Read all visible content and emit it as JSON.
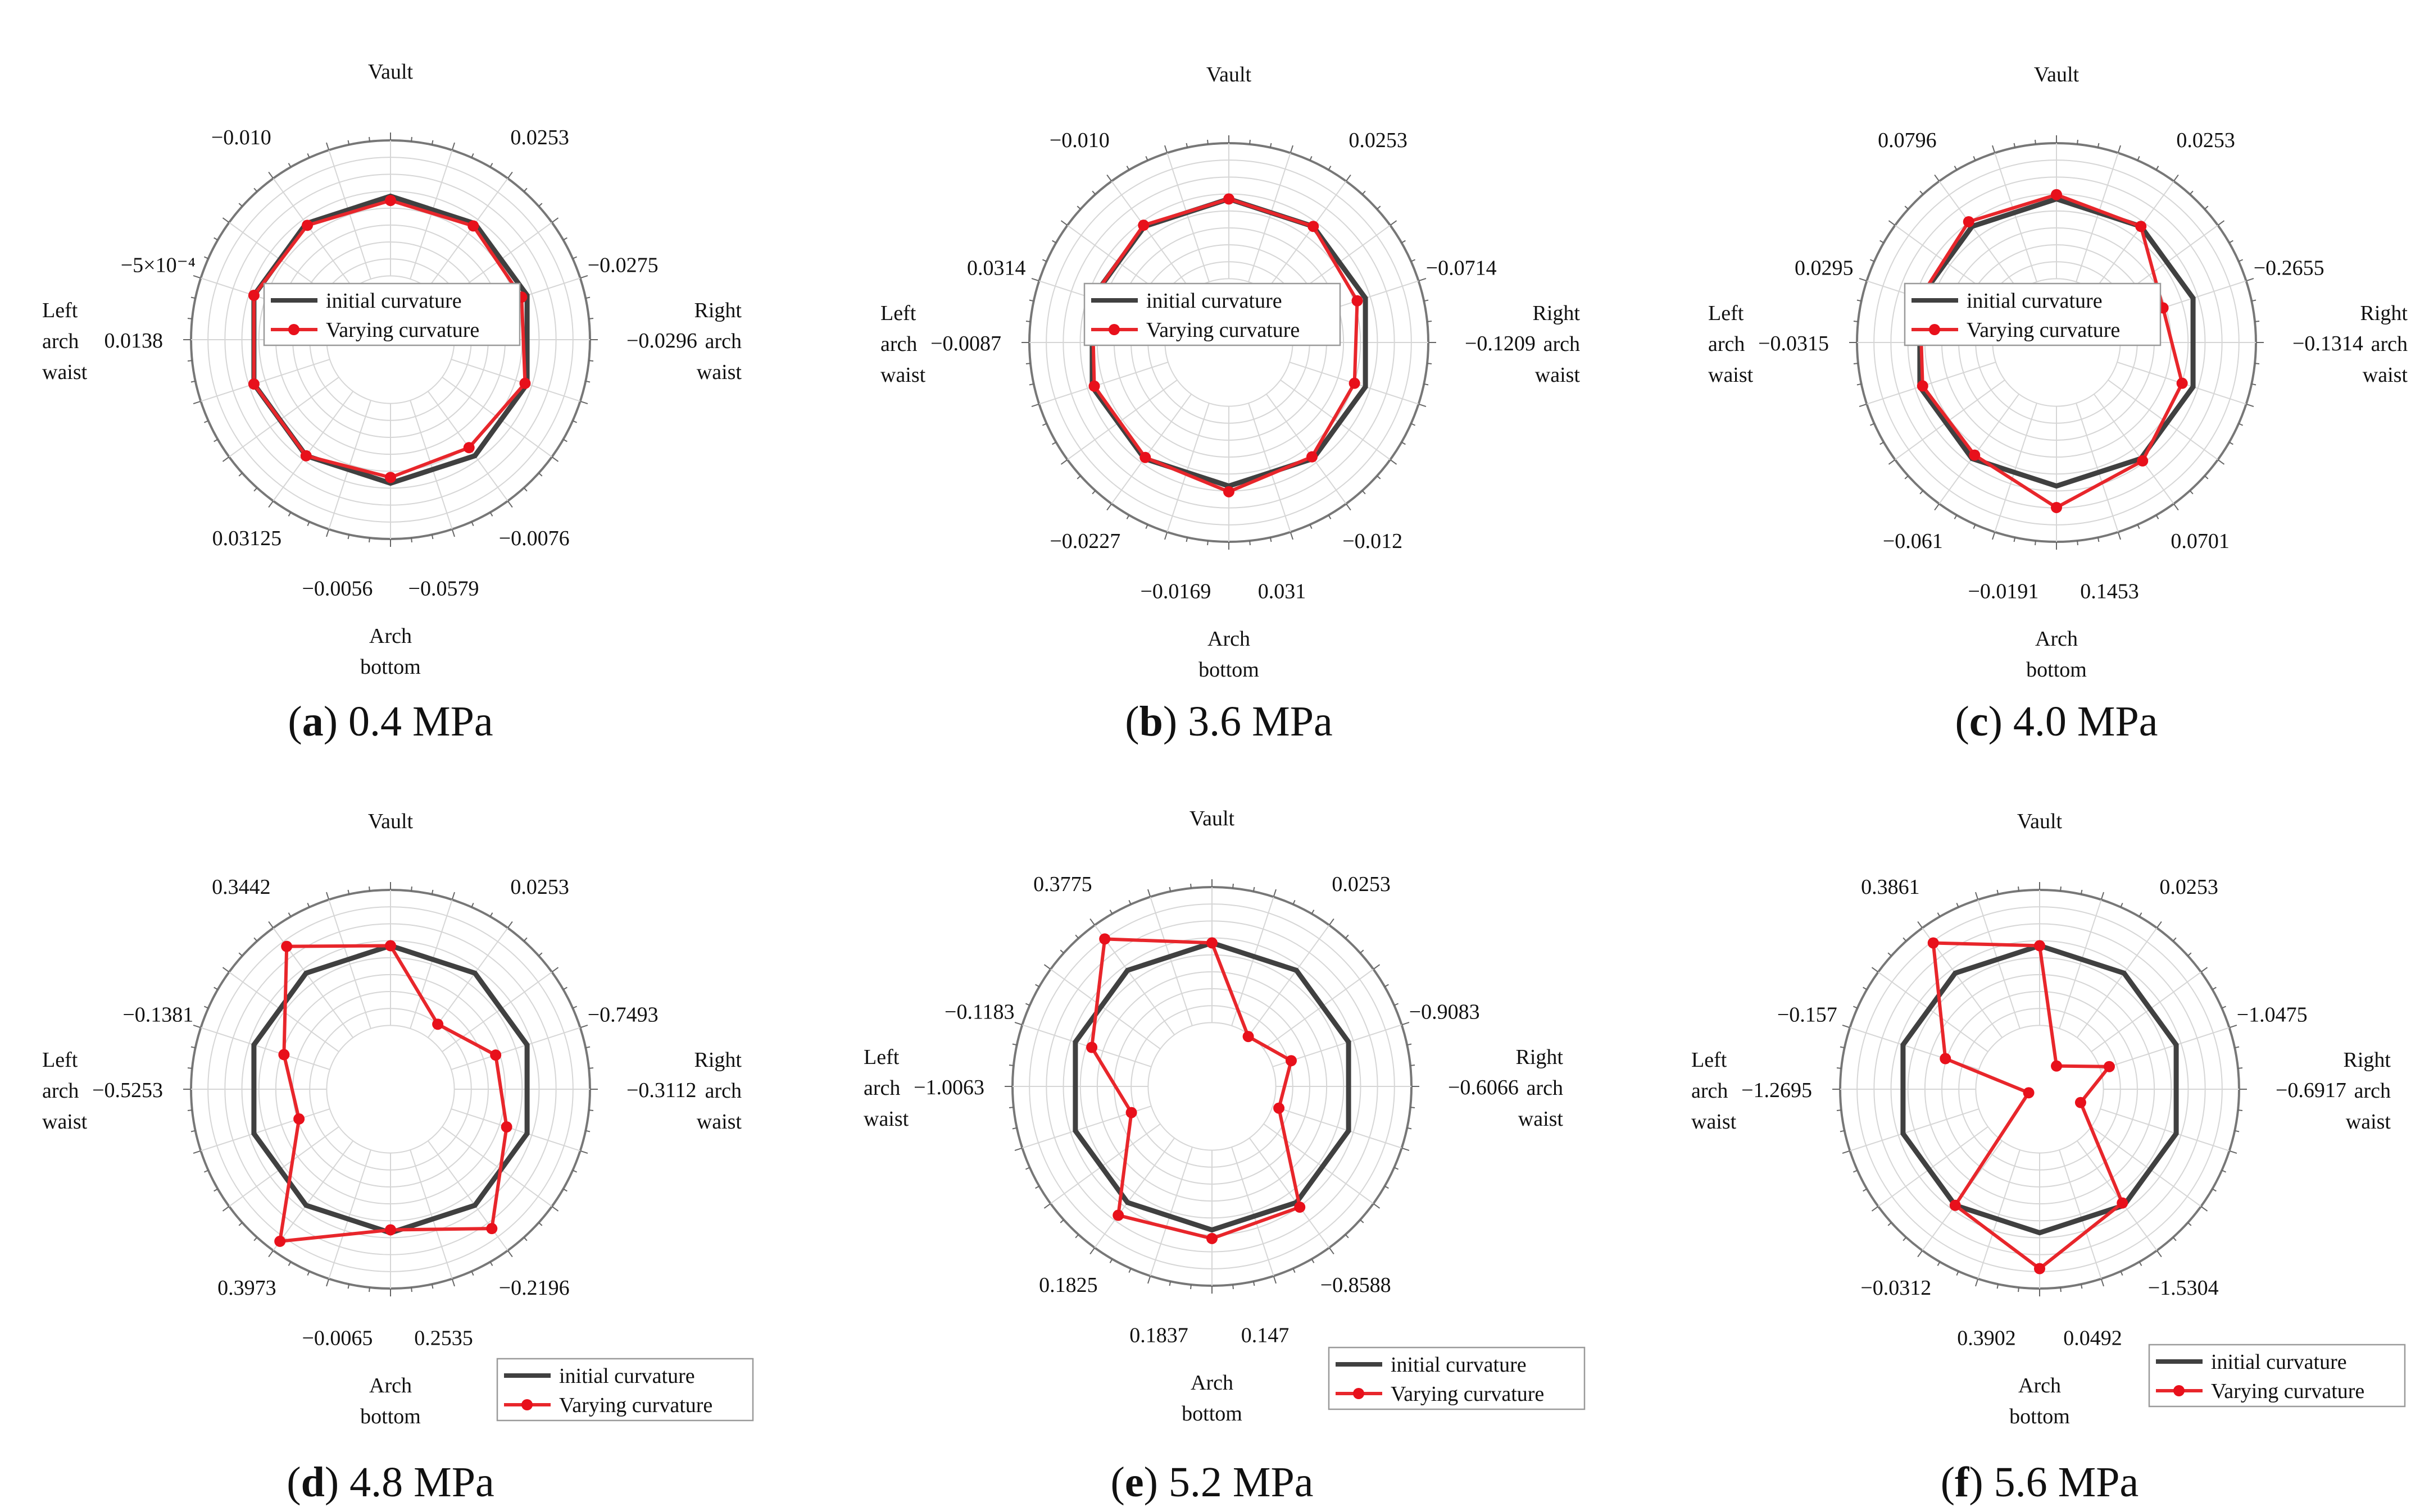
{
  "legend": {
    "initial": "initial curvature",
    "varying": "Varying curvature"
  },
  "colors": {
    "initial": "#404040",
    "varying": "#e8262b",
    "grid": "#d6d6d6"
  },
  "chart_data": [
    {
      "type": "radar",
      "caption_letter": "a",
      "caption_text": " 0.4 MPa",
      "axes": [
        "Vault",
        "0.0253",
        "−0.0275",
        "Right arch waist",
        "−0.0076",
        "−0.0579",
        "Arch bottom",
        "−0.0056",
        "0.03125",
        "Left arch waist",
        "−5×10⁻⁴",
        "−0.010"
      ],
      "labels": {
        "vault": "Vault",
        "right": [
          "Right",
          "arch",
          "waist"
        ],
        "right_value": "−0.0296",
        "bottom": [
          "Arch",
          "bottom"
        ],
        "left": [
          "Left",
          "arch",
          "waist"
        ],
        "left_value": "0.0138"
      },
      "initial": [
        1,
        1,
        1,
        1,
        1,
        1,
        1,
        1,
        1,
        1
      ],
      "varying": [
        0.97,
        0.98,
        0.96,
        0.985,
        0.93,
        0.96,
        1.0,
        1.0,
        1.0,
        0.985
      ]
    },
    {
      "type": "radar",
      "caption_letter": "b",
      "caption_text": " 3.6 MPa",
      "axes": [
        "Vault",
        "0.0253",
        "−0.0714",
        "Right arch waist",
        "−0.012",
        "0.031",
        "Arch bottom",
        "−0.0169",
        "−0.0227",
        "Left arch waist",
        "0.0314",
        "−0.010"
      ],
      "labels": {
        "vault": "Vault",
        "right": [
          "Right",
          "arch",
          "waist"
        ],
        "right_value": "−0.1209",
        "bottom": [
          "Arch",
          "bottom"
        ],
        "left": [
          "Left",
          "arch",
          "waist"
        ],
        "left_value": "−0.0087"
      },
      "initial": [
        1,
        1,
        1,
        1,
        1,
        1,
        1,
        1,
        1,
        1
      ],
      "varying": [
        1.0,
        1.0,
        0.94,
        0.92,
        0.985,
        1.04,
        0.99,
        0.985,
        1.0,
        1.01
      ]
    },
    {
      "type": "radar",
      "caption_letter": "c",
      "caption_text": " 4.0 MPa",
      "axes": [
        "Vault",
        "0.0253",
        "−0.2655",
        "Right arch waist",
        "0.0701",
        "0.1453",
        "Arch bottom",
        "−0.0191",
        "−0.061",
        "Left arch waist",
        "0.0295",
        "0.0796"
      ],
      "labels": {
        "vault": "Vault",
        "right": [
          "Right",
          "arch",
          "waist"
        ],
        "right_value": "−0.1314",
        "bottom": [
          "Arch",
          "bottom"
        ],
        "left": [
          "Left",
          "arch",
          "waist"
        ],
        "left_value": "−0.0315"
      },
      "initial": [
        1,
        1,
        1,
        1,
        1,
        1,
        1,
        1,
        1,
        1
      ],
      "varying": [
        1.03,
        1.0,
        0.78,
        0.92,
        1.02,
        1.15,
        0.97,
        0.98,
        1.0,
        1.04
      ]
    },
    {
      "type": "radar",
      "caption_letter": "d",
      "caption_text": " 4.8 MPa",
      "axes": [
        "Vault",
        "0.0253",
        "−0.7493",
        "Right arch waist",
        "−0.2196",
        "0.2535",
        "Arch bottom",
        "−0.0065",
        "0.3973",
        "Left arch waist",
        "−0.1381",
        "0.3442"
      ],
      "labels": {
        "vault": "Vault",
        "right": [
          "Right",
          "arch",
          "waist"
        ],
        "right_value": "−0.3112",
        "bottom": [
          "Arch",
          "bottom"
        ],
        "left": [
          "Left",
          "arch",
          "waist"
        ],
        "left_value": "−0.5253"
      },
      "initial": [
        1,
        1,
        1,
        1,
        1,
        1,
        1,
        1,
        1,
        1
      ],
      "varying": [
        1.0,
        0.56,
        0.77,
        0.85,
        1.2,
        0.98,
        1.31,
        0.67,
        0.78,
        1.23
      ]
    },
    {
      "type": "radar",
      "caption_letter": "e",
      "caption_text": " 5.2 MPa",
      "axes": [
        "Vault",
        "0.0253",
        "−0.9083",
        "Right arch waist",
        "−0.8588",
        "0.147",
        "Arch bottom",
        "0.1837",
        "0.1825",
        "Left arch waist",
        "−0.1183",
        "0.3775"
      ],
      "labels": {
        "vault": "Vault",
        "right": [
          "Right",
          "arch",
          "waist"
        ],
        "right_value": "−0.6066",
        "bottom": [
          "Arch",
          "bottom"
        ],
        "left": [
          "Left",
          "arch",
          "waist"
        ],
        "left_value": "−1.0063"
      },
      "initial": [
        1,
        1,
        1,
        1,
        1,
        1,
        1,
        1,
        1,
        1
      ],
      "varying": [
        1.0,
        0.43,
        0.58,
        0.49,
        1.04,
        1.06,
        1.11,
        0.59,
        0.88,
        1.27
      ]
    },
    {
      "type": "radar",
      "caption_letter": "f",
      "caption_text": " 5.6 MPa",
      "axes": [
        "Vault",
        "0.0253",
        "−1.0475",
        "Right arch waist",
        "−1.5304",
        "0.0492",
        "Arch bottom",
        "0.3902",
        "−0.0312",
        "Left arch waist",
        "−0.157",
        "0.3861"
      ],
      "labels": {
        "vault": "Vault",
        "right": [
          "Right",
          "arch",
          "waist"
        ],
        "right_value": "−0.6917",
        "bottom": [
          "Arch",
          "bottom"
        ],
        "left": [
          "Left",
          "arch",
          "waist"
        ],
        "left_value": "−1.2695"
      },
      "initial": [
        1,
        1,
        1,
        1,
        1,
        1,
        1,
        1,
        1,
        1
      ],
      "varying": [
        1.0,
        0.2,
        0.51,
        0.3,
        0.98,
        1.25,
        1.0,
        0.08,
        0.69,
        1.26
      ]
    }
  ]
}
